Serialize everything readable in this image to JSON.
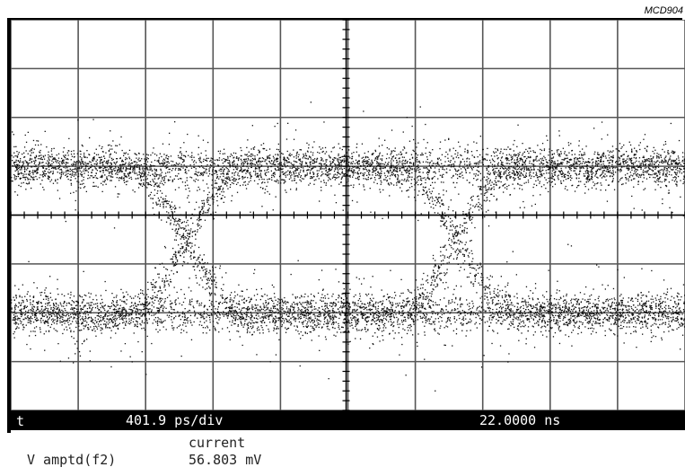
{
  "figure_id": "MCD904",
  "bottom_bar": {
    "marker": "t",
    "timebase": "401.9 ps/div",
    "time_position": "22.0000 ns"
  },
  "measurement": {
    "header": "current",
    "label": "V amptd(f2)",
    "value": "56.803 mV"
  },
  "chart_data": {
    "type": "scatter",
    "title": "",
    "xlabel": "",
    "ylabel": "",
    "x_divisions": 10,
    "y_divisions": 8,
    "grid": true,
    "x_unit_per_div": "401.9 ps",
    "colors": {
      "trace": "#111111",
      "grid": "#555555",
      "background": "#ffffff"
    },
    "eye": {
      "upper_level_div": 5.0,
      "lower_level_div": 2.0,
      "noise_div": 0.32,
      "crossings_div": [
        2.6,
        6.6
      ],
      "transition_width_div": 1.9
    }
  }
}
